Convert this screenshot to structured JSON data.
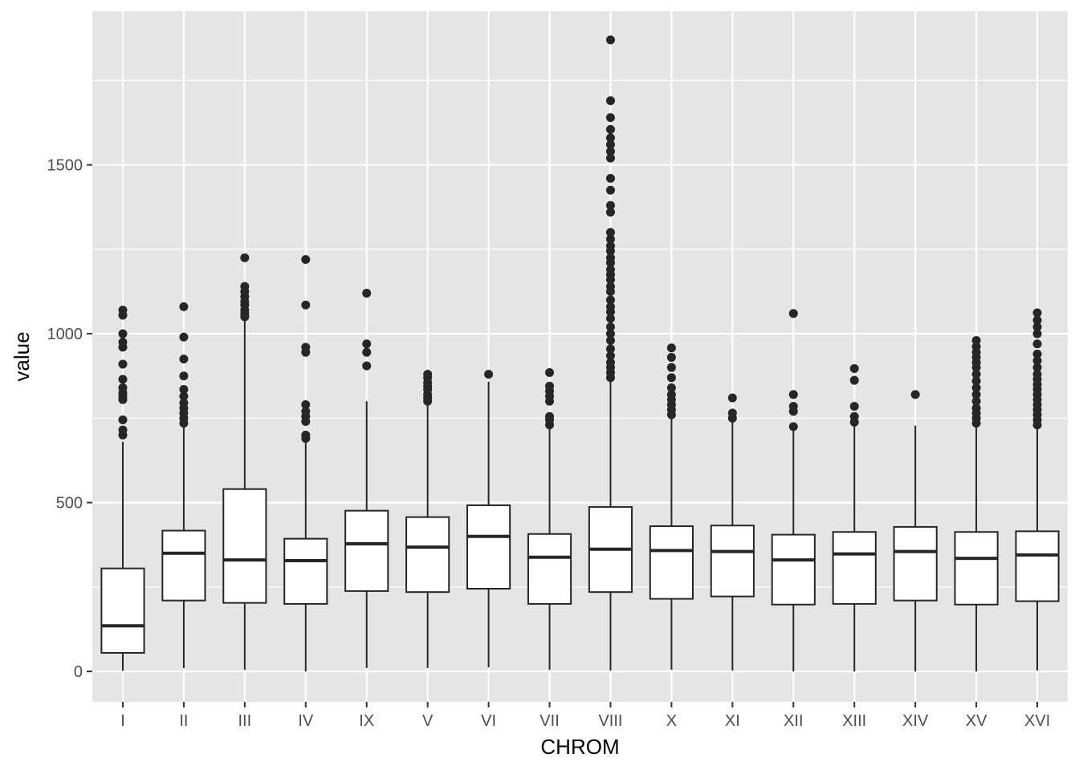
{
  "chart_data": {
    "type": "box",
    "xlabel": "CHROM",
    "ylabel": "value",
    "ylim": [
      -90,
      1955
    ],
    "yticks": [
      0,
      500,
      1000,
      1500
    ],
    "grid": true,
    "legend": "none",
    "colors": {
      "panel_bg": "#e5e5e5",
      "grid": "#ffffff",
      "box_fill": "#ffffff",
      "box_line": "#262626",
      "outlier": "#262626",
      "tick_text": "#4d4d4d",
      "axis_title": "#000000"
    },
    "categories": [
      "I",
      "II",
      "III",
      "IV",
      "IX",
      "V",
      "VI",
      "VII",
      "VIII",
      "X",
      "XI",
      "XII",
      "XIII",
      "XIV",
      "XV",
      "XVI"
    ],
    "boxes": [
      {
        "category": "I",
        "whisker_low": 2,
        "q1": 55,
        "median": 135,
        "q3": 305,
        "whisker_high": 680,
        "outliers": [
          700,
          715,
          745,
          805,
          815,
          825,
          840,
          865,
          910,
          960,
          975,
          1000,
          1055,
          1070
        ]
      },
      {
        "category": "II",
        "whisker_low": 10,
        "q1": 210,
        "median": 350,
        "q3": 417,
        "whisker_high": 725,
        "outliers": [
          735,
          750,
          765,
          780,
          795,
          815,
          835,
          875,
          925,
          990,
          1080
        ]
      },
      {
        "category": "III",
        "whisker_low": 5,
        "q1": 203,
        "median": 330,
        "q3": 540,
        "whisker_high": 1040,
        "outliers": [
          1050,
          1060,
          1070,
          1085,
          1095,
          1110,
          1125,
          1140,
          1225
        ]
      },
      {
        "category": "IV",
        "whisker_low": 0,
        "q1": 200,
        "median": 328,
        "q3": 393,
        "whisker_high": 680,
        "outliers": [
          690,
          700,
          740,
          755,
          770,
          790,
          945,
          960,
          1085,
          1220
        ]
      },
      {
        "category": "IX",
        "whisker_low": 10,
        "q1": 238,
        "median": 378,
        "q3": 476,
        "whisker_high": 800,
        "outliers": [
          905,
          945,
          970,
          1120
        ]
      },
      {
        "category": "V",
        "whisker_low": 10,
        "q1": 235,
        "median": 368,
        "q3": 457,
        "whisker_high": 790,
        "outliers": [
          800,
          810,
          820,
          835,
          845,
          855,
          870,
          880
        ]
      },
      {
        "category": "VI",
        "whisker_low": 12,
        "q1": 245,
        "median": 400,
        "q3": 492,
        "whisker_high": 858,
        "outliers": [
          880
        ]
      },
      {
        "category": "VII",
        "whisker_low": 5,
        "q1": 200,
        "median": 338,
        "q3": 407,
        "whisker_high": 720,
        "outliers": [
          730,
          745,
          755,
          800,
          815,
          830,
          845,
          885
        ]
      },
      {
        "category": "VIII",
        "whisker_low": 3,
        "q1": 235,
        "median": 362,
        "q3": 487,
        "whisker_high": 862,
        "outliers": [
          870,
          885,
          900,
          915,
          935,
          955,
          980,
          1000,
          1020,
          1045,
          1065,
          1080,
          1100,
          1125,
          1140,
          1160,
          1175,
          1190,
          1210,
          1225,
          1245,
          1260,
          1280,
          1300,
          1360,
          1380,
          1425,
          1460,
          1520,
          1540,
          1560,
          1580,
          1605,
          1640,
          1690,
          1870
        ]
      },
      {
        "category": "X",
        "whisker_low": 5,
        "q1": 215,
        "median": 358,
        "q3": 430,
        "whisker_high": 750,
        "outliers": [
          760,
          775,
          790,
          805,
          820,
          840,
          870,
          900,
          930,
          958
        ]
      },
      {
        "category": "XI",
        "whisker_low": 3,
        "q1": 222,
        "median": 355,
        "q3": 432,
        "whisker_high": 740,
        "outliers": [
          750,
          765,
          810
        ]
      },
      {
        "category": "XII",
        "whisker_low": 0,
        "q1": 198,
        "median": 330,
        "q3": 405,
        "whisker_high": 715,
        "outliers": [
          725,
          770,
          785,
          820,
          1060
        ]
      },
      {
        "category": "XIII",
        "whisker_low": 0,
        "q1": 200,
        "median": 348,
        "q3": 413,
        "whisker_high": 730,
        "outliers": [
          738,
          755,
          785,
          862,
          897
        ]
      },
      {
        "category": "XIV",
        "whisker_low": 0,
        "q1": 210,
        "median": 355,
        "q3": 428,
        "whisker_high": 728,
        "outliers": [
          820
        ]
      },
      {
        "category": "XV",
        "whisker_low": 0,
        "q1": 198,
        "median": 335,
        "q3": 413,
        "whisker_high": 725,
        "outliers": [
          735,
          750,
          765,
          780,
          800,
          820,
          840,
          860,
          880,
          900,
          915,
          930,
          945,
          962,
          980
        ]
      },
      {
        "category": "XVI",
        "whisker_low": 3,
        "q1": 208,
        "median": 345,
        "q3": 415,
        "whisker_high": 722,
        "outliers": [
          730,
          745,
          760,
          775,
          790,
          805,
          820,
          835,
          850,
          865,
          880,
          900,
          920,
          940,
          970,
          1000,
          1020,
          1040,
          1062
        ]
      }
    ]
  }
}
